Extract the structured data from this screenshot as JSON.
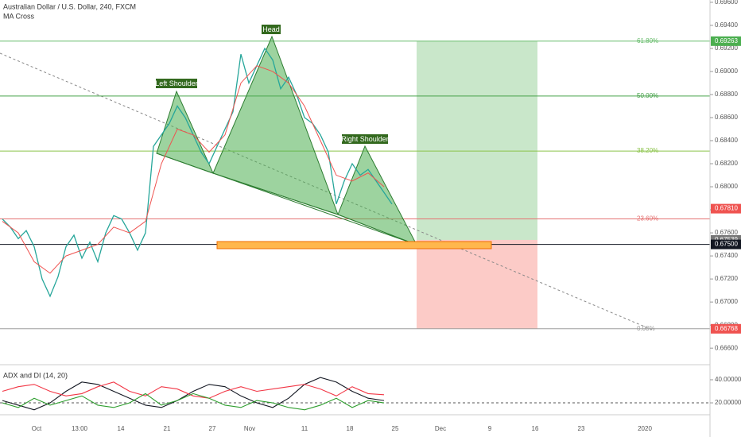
{
  "header": {
    "title": "Australian Dollar / U.S. Dollar, 240, FXCM",
    "indicator": "MA Cross"
  },
  "chart_data": [
    {
      "type": "line",
      "grid": false,
      "ylim": [
        0.66484,
        0.6962
      ],
      "yticks": [
        {
          "value": 0.696,
          "label": "0.69600"
        },
        {
          "value": 0.694,
          "label": "0.69400"
        },
        {
          "value": 0.692,
          "label": "0.69200"
        },
        {
          "value": 0.69,
          "label": "0.69000"
        },
        {
          "value": 0.688,
          "label": "0.68800"
        },
        {
          "value": 0.686,
          "label": "0.68600"
        },
        {
          "value": 0.684,
          "label": "0.68400"
        },
        {
          "value": 0.682,
          "label": "0.68200"
        },
        {
          "value": 0.68,
          "label": "0.68000"
        },
        {
          "value": 0.678,
          "label": "0.67800"
        },
        {
          "value": 0.676,
          "label": "0.67600"
        },
        {
          "value": 0.674,
          "label": "0.67400"
        },
        {
          "value": 0.672,
          "label": "0.67200"
        },
        {
          "value": 0.67,
          "label": "0.67000"
        },
        {
          "value": 0.668,
          "label": "0.66800"
        },
        {
          "value": 0.666,
          "label": "0.66600"
        }
      ],
      "xticks": [
        "Oct",
        "13:00",
        "14",
        "21",
        "27",
        "Nov",
        "11",
        "18",
        "25",
        "Dec",
        "9",
        "16",
        "23",
        "2020"
      ],
      "series": [
        {
          "color": "#26a69a",
          "values": [
            0.6772,
            0.6765,
            0.6755,
            0.6762,
            0.6748,
            0.672,
            0.6705,
            0.6722,
            0.6748,
            0.6758,
            0.6738,
            0.6752,
            0.6735,
            0.676,
            0.6775,
            0.6772,
            0.676,
            0.6745,
            0.676,
            0.6835,
            0.6845,
            0.6855,
            0.687,
            0.686,
            0.6845,
            0.683,
            0.682,
            0.6835,
            0.685,
            0.6865,
            0.6915,
            0.689,
            0.6905,
            0.692,
            0.691,
            0.6885,
            0.6895,
            0.688,
            0.686,
            0.6855,
            0.6845,
            0.683,
            0.6785,
            0.6805,
            0.682,
            0.681,
            0.6815,
            0.6805,
            0.6795,
            0.6785
          ]
        },
        {
          "color": "#ef5350",
          "values": [
            0.677,
            0.676,
            0.6735,
            0.6725,
            0.674,
            0.6745,
            0.675,
            0.6765,
            0.676,
            0.677,
            0.682,
            0.685,
            0.6845,
            0.683,
            0.6845,
            0.689,
            0.6905,
            0.69,
            0.689,
            0.687,
            0.684,
            0.681,
            0.6805,
            0.6812,
            0.68
          ]
        }
      ],
      "fib_levels": [
        {
          "label": "61.80%",
          "price": 0.69263,
          "color": "#66bb6a"
        },
        {
          "label": "50.00%",
          "price": 0.68787,
          "color": "#43a047"
        },
        {
          "label": "38.20%",
          "price": 0.6831,
          "color": "#8bc34a"
        },
        {
          "label": "23.60%",
          "price": 0.67721,
          "color": "#e57373"
        },
        {
          "label": "0.00%",
          "price": 0.66768,
          "color": "#9e9e9e"
        }
      ],
      "price_tags": [
        {
          "value": 0.69263,
          "color": "#4caf50"
        },
        {
          "value": {
            "value": 0.6781,
            "label": "0.67810"
          },
          "color": "#ef5350"
        },
        {
          "value": 0.67539,
          "color": "#757575"
        },
        {
          "value": {
            "value": 0.675,
            "label": "0.67500"
          },
          "color": "#131722"
        },
        {
          "value": 0.66768,
          "color": "#ef5350"
        }
      ],
      "annotations": [
        "Left Shoulder",
        "Head",
        "Right Shoulder"
      ]
    },
    {
      "type": "line",
      "title": "ADX and DI (14, 20)",
      "ylim": [
        9.7,
        50.3
      ],
      "yticks": [
        {
          "value": 40,
          "label": "40.00000"
        },
        {
          "value": 20,
          "label": "20.00000"
        }
      ],
      "series": [
        {
          "color": "#131722",
          "values": [
            22,
            18,
            14,
            20,
            30,
            38,
            36,
            30,
            24,
            18,
            16,
            22,
            30,
            36,
            34,
            26,
            20,
            16,
            24,
            36,
            42,
            38,
            30,
            24,
            22
          ]
        },
        {
          "color": "#f23645",
          "values": [
            30,
            34,
            36,
            30,
            26,
            28,
            34,
            38,
            30,
            26,
            34,
            32,
            26,
            24,
            30,
            34,
            30,
            32,
            34,
            36,
            32,
            26,
            34,
            28,
            27
          ]
        },
        {
          "color": "#2e9e2e",
          "values": [
            20,
            16,
            24,
            18,
            22,
            26,
            18,
            16,
            20,
            28,
            18,
            22,
            28,
            24,
            18,
            16,
            22,
            20,
            16,
            14,
            18,
            24,
            16,
            22,
            20
          ]
        }
      ]
    }
  ]
}
